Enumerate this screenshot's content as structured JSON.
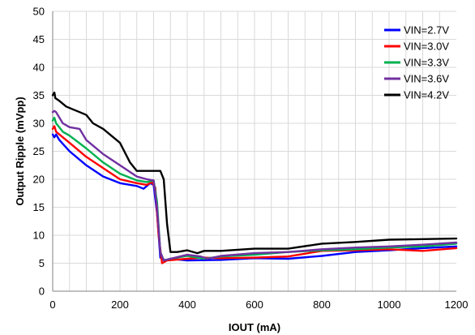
{
  "chart_data": {
    "type": "line",
    "title": "",
    "xlabel": "IOUT (mA)",
    "ylabel": "Output Ripple (mVpp)",
    "xlim": [
      0,
      1200
    ],
    "ylim": [
      0,
      50
    ],
    "xticks": [
      0,
      200,
      400,
      600,
      800,
      1000,
      1200
    ],
    "yticks": [
      0,
      5,
      10,
      15,
      20,
      25,
      30,
      35,
      40,
      45,
      50
    ],
    "grid": true,
    "legend_position": "top-right",
    "series": [
      {
        "name": "VIN=2.7V",
        "color": "#0000ff",
        "points": [
          [
            0,
            28.0
          ],
          [
            5,
            27.5
          ],
          [
            10,
            28.0
          ],
          [
            20,
            27.0
          ],
          [
            50,
            25.0
          ],
          [
            100,
            22.5
          ],
          [
            150,
            20.5
          ],
          [
            200,
            19.3
          ],
          [
            250,
            18.8
          ],
          [
            270,
            18.3
          ],
          [
            290,
            19.3
          ],
          [
            300,
            19.0
          ],
          [
            310,
            14.0
          ],
          [
            320,
            6.0
          ],
          [
            335,
            5.5
          ],
          [
            350,
            5.8
          ],
          [
            400,
            5.5
          ],
          [
            500,
            5.6
          ],
          [
            600,
            5.9
          ],
          [
            700,
            5.8
          ],
          [
            800,
            6.3
          ],
          [
            900,
            7.0
          ],
          [
            1000,
            7.3
          ],
          [
            1100,
            7.7
          ],
          [
            1200,
            8.0
          ]
        ]
      },
      {
        "name": "VIN=3.0V",
        "color": "#ff0000",
        "points": [
          [
            0,
            29.0
          ],
          [
            5,
            29.5
          ],
          [
            10,
            28.5
          ],
          [
            20,
            28.0
          ],
          [
            50,
            26.5
          ],
          [
            100,
            24.0
          ],
          [
            150,
            22.0
          ],
          [
            200,
            20.0
          ],
          [
            250,
            19.3
          ],
          [
            280,
            19.0
          ],
          [
            295,
            19.5
          ],
          [
            305,
            18.5
          ],
          [
            315,
            10.0
          ],
          [
            325,
            5.0
          ],
          [
            340,
            5.5
          ],
          [
            400,
            5.8
          ],
          [
            450,
            6.0
          ],
          [
            500,
            5.9
          ],
          [
            600,
            6.0
          ],
          [
            700,
            6.2
          ],
          [
            800,
            7.2
          ],
          [
            900,
            7.3
          ],
          [
            1000,
            7.5
          ],
          [
            1100,
            7.2
          ],
          [
            1200,
            7.7
          ]
        ]
      },
      {
        "name": "VIN=3.3V",
        "color": "#00b050",
        "points": [
          [
            0,
            30.5
          ],
          [
            5,
            31.0
          ],
          [
            10,
            30.0
          ],
          [
            30,
            28.5
          ],
          [
            50,
            27.8
          ],
          [
            100,
            25.5
          ],
          [
            150,
            23.0
          ],
          [
            200,
            21.0
          ],
          [
            250,
            19.8
          ],
          [
            280,
            19.5
          ],
          [
            300,
            19.8
          ],
          [
            310,
            16.0
          ],
          [
            320,
            7.0
          ],
          [
            330,
            5.5
          ],
          [
            350,
            5.8
          ],
          [
            400,
            6.3
          ],
          [
            450,
            5.8
          ],
          [
            500,
            6.2
          ],
          [
            600,
            6.5
          ],
          [
            700,
            7.0
          ],
          [
            800,
            7.3
          ],
          [
            900,
            7.5
          ],
          [
            1000,
            7.8
          ],
          [
            1100,
            8.0
          ],
          [
            1200,
            8.5
          ]
        ]
      },
      {
        "name": "VIN=3.6V",
        "color": "#7030a0",
        "points": [
          [
            0,
            32.0
          ],
          [
            5,
            32.2
          ],
          [
            10,
            32.0
          ],
          [
            30,
            30.0
          ],
          [
            50,
            29.3
          ],
          [
            80,
            29.0
          ],
          [
            100,
            27.0
          ],
          [
            150,
            24.5
          ],
          [
            200,
            22.5
          ],
          [
            250,
            20.5
          ],
          [
            280,
            20.0
          ],
          [
            300,
            19.8
          ],
          [
            310,
            15.0
          ],
          [
            320,
            7.0
          ],
          [
            330,
            5.5
          ],
          [
            350,
            5.8
          ],
          [
            400,
            6.5
          ],
          [
            440,
            6.2
          ],
          [
            460,
            5.8
          ],
          [
            500,
            6.3
          ],
          [
            600,
            6.8
          ],
          [
            700,
            7.0
          ],
          [
            800,
            7.5
          ],
          [
            900,
            7.8
          ],
          [
            1000,
            8.0
          ],
          [
            1100,
            8.3
          ],
          [
            1200,
            8.7
          ]
        ]
      },
      {
        "name": "VIN=4.2V",
        "color": "#000000",
        "points": [
          [
            0,
            35.0
          ],
          [
            5,
            35.5
          ],
          [
            8,
            34.5
          ],
          [
            20,
            34.0
          ],
          [
            40,
            33.0
          ],
          [
            60,
            32.5
          ],
          [
            80,
            32.0
          ],
          [
            100,
            31.5
          ],
          [
            120,
            30.0
          ],
          [
            150,
            29.0
          ],
          [
            200,
            26.5
          ],
          [
            230,
            23.0
          ],
          [
            250,
            21.5
          ],
          [
            280,
            21.5
          ],
          [
            300,
            21.5
          ],
          [
            320,
            21.5
          ],
          [
            330,
            20.0
          ],
          [
            340,
            12.0
          ],
          [
            350,
            7.0
          ],
          [
            370,
            7.0
          ],
          [
            400,
            7.3
          ],
          [
            430,
            6.8
          ],
          [
            450,
            7.2
          ],
          [
            500,
            7.2
          ],
          [
            600,
            7.6
          ],
          [
            700,
            7.6
          ],
          [
            800,
            8.5
          ],
          [
            900,
            8.8
          ],
          [
            1000,
            9.2
          ],
          [
            1100,
            9.3
          ],
          [
            1200,
            9.4
          ]
        ]
      }
    ]
  }
}
